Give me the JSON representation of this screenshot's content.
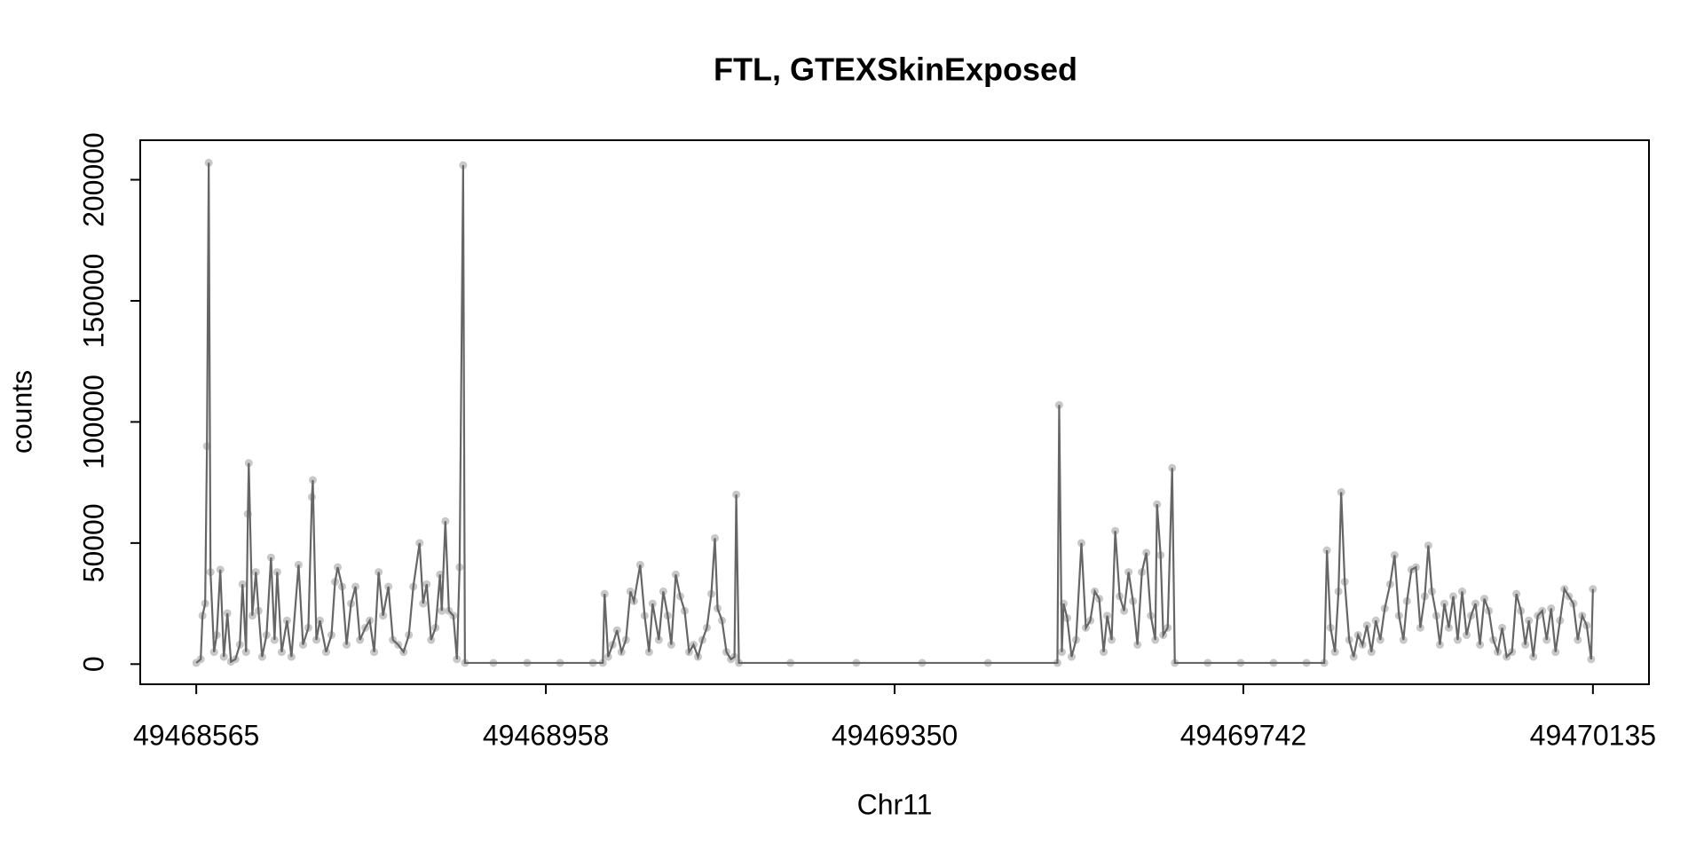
{
  "chart_data": {
    "type": "line",
    "title": "FTL, GTEXSkinExposed",
    "xlabel": "Chr11",
    "ylabel": "counts",
    "x": [
      49468565,
      49468570,
      49468572,
      49468575,
      49468577,
      49468579,
      49468581,
      49468585,
      49468588,
      49468592,
      49468596,
      49468600,
      49468604,
      49468609,
      49468614,
      49468617,
      49468621,
      49468623,
      49468624,
      49468628,
      49468632,
      49468635,
      49468639,
      49468644,
      49468649,
      49468653,
      49468656,
      49468661,
      49468667,
      49468672,
      49468680,
      49468685,
      49468691,
      49468695,
      49468696,
      49468700,
      49468704,
      49468711,
      49468717,
      49468721,
      49468724,
      49468729,
      49468734,
      49468739,
      49468744,
      49468749,
      49468755,
      49468760,
      49468765,
      49468770,
      49468775,
      49468781,
      49468786,
      49468792,
      49468798,
      49468804,
      49468809,
      49468816,
      49468820,
      49468824,
      49468829,
      49468834,
      49468839,
      49468841,
      49468845,
      49468849,
      49468854,
      49468858,
      49468861,
      49468865,
      49468867,
      49468899,
      49468937,
      49468974,
      49469011,
      49469022,
      49469024,
      49469028,
      49469033,
      49469038,
      49469043,
      49469048,
      49469053,
      49469057,
      49469064,
      49469069,
      49469074,
      49469078,
      49469085,
      49469090,
      49469095,
      49469099,
      49469104,
      49469109,
      49469114,
      49469119,
      49469124,
      49469129,
      49469134,
      49469139,
      49469144,
      49469148,
      49469151,
      49469156,
      49469161,
      49469166,
      49469170,
      49469172,
      49469175,
      49469233,
      49469307,
      49469381,
      49469455,
      49469533,
      49469535,
      49469538,
      49469540,
      49469544,
      49469549,
      49469554,
      49469560,
      49469565,
      49469570,
      49469575,
      49469580,
      49469585,
      49469589,
      49469594,
      49469598,
      49469603,
      49469608,
      49469613,
      49469618,
      49469623,
      49469628,
      49469633,
      49469638,
      49469643,
      49469645,
      49469649,
      49469652,
      49469657,
      49469662,
      49469665,
      49469702,
      49469739,
      49469776,
      49469813,
      49469833,
      49469836,
      49469840,
      49469845,
      49469849,
      49469852,
      49469856,
      49469861,
      49469866,
      49469871,
      49469876,
      49469881,
      49469886,
      49469891,
      49469896,
      49469901,
      49469907,
      49469912,
      49469917,
      49469922,
      49469926,
      49469931,
      49469936,
      49469941,
      49469946,
      49469950,
      49469954,
      49469959,
      49469963,
      49469968,
      49469973,
      49469978,
      49469983,
      49469988,
      49469993,
      49469998,
      49470003,
      49470008,
      49470013,
      49470018,
      49470023,
      49470028,
      49470033,
      49470038,
      49470044,
      49470049,
      49470054,
      49470059,
      49470063,
      49470068,
      49470073,
      49470078,
      49470083,
      49470088,
      49470093,
      49470098,
      49470103,
      49470108,
      49470113,
      49470118,
      49470123,
      49470128,
      49470133,
      49470135
    ],
    "values": [
      500,
      2000,
      20000,
      25000,
      90000,
      207000,
      38000,
      5000,
      12000,
      39000,
      3000,
      21000,
      1000,
      2000,
      8000,
      33000,
      5000,
      62000,
      83000,
      20000,
      38000,
      22000,
      3000,
      12000,
      44000,
      10000,
      38000,
      5000,
      18000,
      3000,
      41000,
      8000,
      15000,
      69000,
      76000,
      10000,
      18000,
      5000,
      12000,
      34000,
      40000,
      32000,
      8000,
      25000,
      32000,
      10000,
      15000,
      18000,
      5000,
      38000,
      20000,
      32000,
      10000,
      8000,
      5000,
      12000,
      32000,
      50000,
      25000,
      33000,
      10000,
      15000,
      37000,
      22000,
      59000,
      22000,
      20000,
      2000,
      40000,
      206000,
      500,
      500,
      500,
      500,
      500,
      500,
      29000,
      3000,
      8000,
      14000,
      5000,
      10000,
      30000,
      26000,
      41000,
      20000,
      5000,
      25000,
      10000,
      30000,
      20000,
      8000,
      37000,
      28000,
      22000,
      5000,
      8000,
      3000,
      10000,
      15000,
      29000,
      52000,
      23000,
      18000,
      5000,
      2000,
      3000,
      70000,
      500,
      500,
      500,
      500,
      500,
      500,
      107000,
      5000,
      25000,
      19000,
      3000,
      10000,
      50000,
      15000,
      18000,
      30000,
      27000,
      5000,
      20000,
      10000,
      55000,
      28000,
      22000,
      38000,
      26000,
      8000,
      38000,
      46000,
      20000,
      10000,
      66000,
      45000,
      12000,
      15000,
      81000,
      500,
      500,
      500,
      500,
      500,
      500,
      47000,
      15000,
      5000,
      30000,
      71000,
      34000,
      10000,
      3000,
      12000,
      8000,
      16000,
      5000,
      18000,
      10000,
      23000,
      33000,
      45000,
      20000,
      10000,
      26000,
      39000,
      40000,
      15000,
      28000,
      49000,
      30000,
      20000,
      8000,
      25000,
      15000,
      28000,
      10000,
      30000,
      12000,
      20000,
      25000,
      8000,
      27000,
      22000,
      10000,
      5000,
      15000,
      3000,
      5000,
      29000,
      22000,
      8000,
      18000,
      3000,
      20000,
      22000,
      10000,
      23000,
      5000,
      18000,
      31000,
      28000,
      25000,
      10000,
      20000,
      16000,
      2000,
      31000
    ],
    "color": "#666666",
    "marker_color": "#c8c8c8",
    "xlim": [
      49468502,
      49470198
    ],
    "ylim": [
      -8320,
      216320
    ],
    "xticks": [
      49468565,
      49468958,
      49469350,
      49469742,
      49470135
    ],
    "yticks": [
      0,
      50000,
      100000,
      150000,
      200000
    ]
  }
}
